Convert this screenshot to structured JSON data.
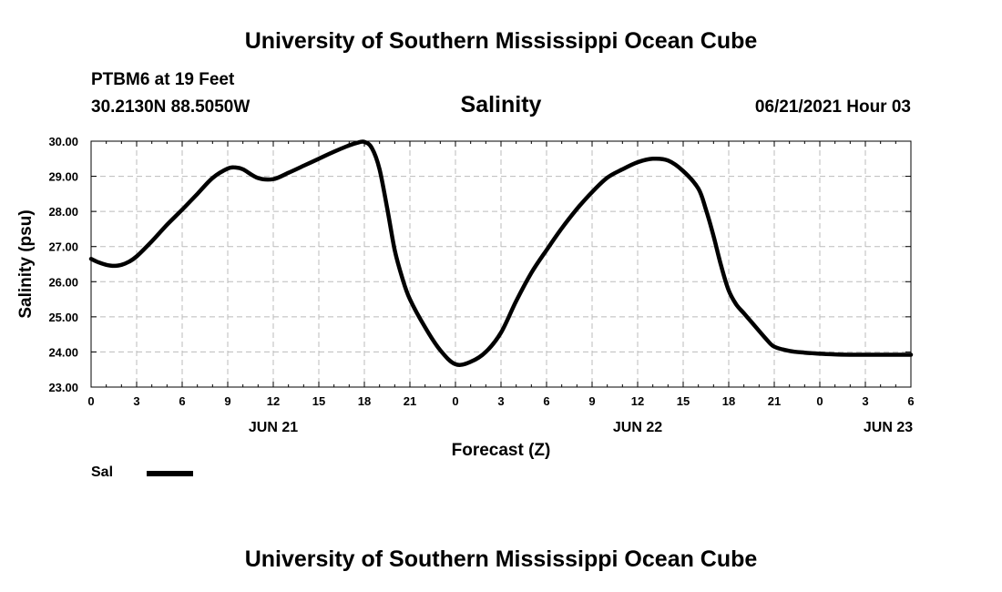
{
  "header": {
    "title": "University of Southern Mississippi Ocean Cube",
    "station": "PTBM6 at 19 Feet",
    "coordinates": "30.2130N  88.5050W",
    "timestamp": "06/21/2021 Hour 03"
  },
  "footer": {
    "title": "University of Southern Mississippi Ocean Cube"
  },
  "legend": {
    "label": "Sal"
  },
  "colors": {
    "line": "#000000",
    "grid": "#bbbbbb"
  },
  "chart_data": {
    "type": "line",
    "title": "Salinity",
    "xlabel": "Forecast (Z)",
    "ylabel": "Salinity (psu)",
    "xlim": [
      0,
      54
    ],
    "ylim": [
      23,
      30
    ],
    "x_ticks": [
      0,
      3,
      6,
      9,
      12,
      15,
      18,
      21,
      24,
      27,
      30,
      33,
      36,
      39,
      42,
      45,
      48,
      51,
      54
    ],
    "x_tick_labels": [
      "0",
      "3",
      "6",
      "9",
      "12",
      "15",
      "18",
      "21",
      "0",
      "3",
      "6",
      "9",
      "12",
      "15",
      "18",
      "21",
      "0",
      "3",
      "6"
    ],
    "y_ticks": [
      23,
      24,
      25,
      26,
      27,
      28,
      29,
      30
    ],
    "y_tick_labels": [
      "23.00",
      "24.00",
      "25.00",
      "26.00",
      "27.00",
      "28.00",
      "29.00",
      "30.00"
    ],
    "date_labels": [
      {
        "x": 12,
        "label": "JUN 21"
      },
      {
        "x": 36,
        "label": "JUN 22"
      },
      {
        "x": 52.5,
        "label": "JUN 23"
      }
    ],
    "grid": true,
    "series": [
      {
        "name": "Sal",
        "x": [
          0,
          0.5,
          1,
          1.5,
          2,
          2.5,
          3,
          4,
          5,
          6,
          7,
          8,
          9,
          9.5,
          10,
          11,
          12,
          13,
          14,
          15,
          16,
          17,
          17.5,
          18,
          18.5,
          19,
          19.5,
          20,
          20.5,
          21,
          22,
          23,
          24,
          25,
          26,
          27,
          28,
          29,
          30,
          31,
          32,
          33,
          34,
          35,
          36,
          37,
          38,
          39,
          40,
          40.5,
          41,
          41.5,
          42,
          42.5,
          43,
          43.5,
          44,
          44.5,
          45,
          46,
          47,
          48,
          49,
          50,
          51,
          52,
          53,
          54
        ],
        "values": [
          26.65,
          26.55,
          26.48,
          26.45,
          26.48,
          26.57,
          26.72,
          27.15,
          27.62,
          28.05,
          28.5,
          28.95,
          29.22,
          29.25,
          29.2,
          28.95,
          28.92,
          29.1,
          29.3,
          29.5,
          29.7,
          29.88,
          29.95,
          29.98,
          29.8,
          29.2,
          28.1,
          26.9,
          26.1,
          25.5,
          24.7,
          24.05,
          23.65,
          23.72,
          24.0,
          24.55,
          25.45,
          26.25,
          26.9,
          27.52,
          28.07,
          28.55,
          28.96,
          29.2,
          29.4,
          29.5,
          29.45,
          29.15,
          28.65,
          28.05,
          27.3,
          26.45,
          25.75,
          25.35,
          25.1,
          24.85,
          24.6,
          24.35,
          24.15,
          24.03,
          23.98,
          23.95,
          23.93,
          23.92,
          23.92,
          23.92,
          23.92,
          23.92
        ]
      }
    ]
  }
}
